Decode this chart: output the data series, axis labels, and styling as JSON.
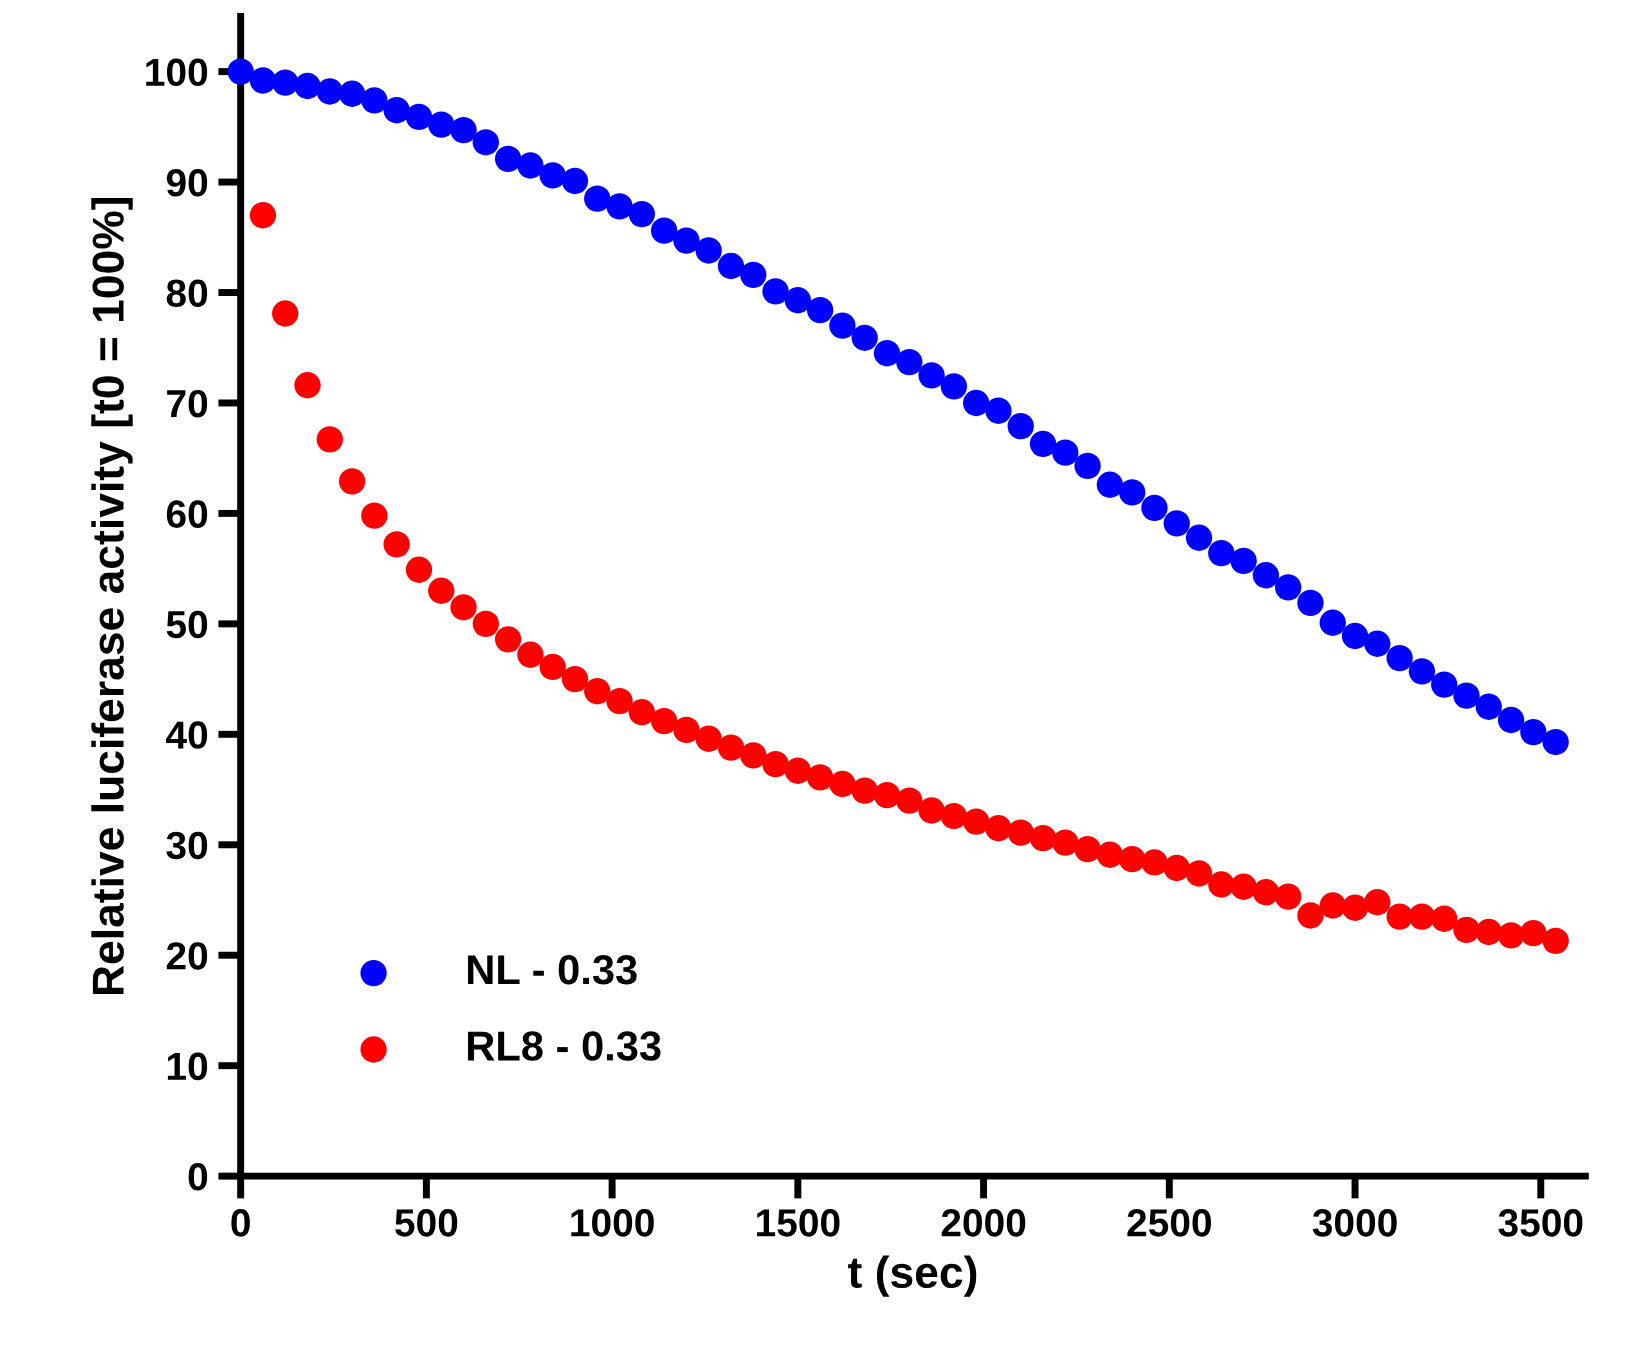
{
  "chart_data": {
    "type": "scatter",
    "xlabel": "t (sec)",
    "ylabel": "Relative luciferase activity [t0 = 100%]",
    "x": [
      0,
      60,
      120,
      180,
      240,
      300,
      360,
      420,
      480,
      540,
      600,
      660,
      720,
      780,
      840,
      900,
      960,
      1020,
      1080,
      1140,
      1200,
      1260,
      1320,
      1380,
      1440,
      1500,
      1560,
      1620,
      1680,
      1740,
      1800,
      1860,
      1920,
      1980,
      2040,
      2100,
      2160,
      2220,
      2280,
      2340,
      2400,
      2460,
      2520,
      2580,
      2640,
      2700,
      2760,
      2820,
      2880,
      2940,
      3000,
      3060,
      3120,
      3180,
      3240,
      3300,
      3360,
      3420,
      3480,
      3540
    ],
    "series": [
      {
        "name": "NL - 0.33",
        "color": "#0000ff",
        "values": [
          100,
          99.2,
          99.0,
          98.7,
          98.2,
          98.0,
          97.4,
          96.5,
          95.9,
          95.2,
          94.7,
          93.6,
          92.1,
          91.5,
          90.6,
          90.1,
          88.5,
          87.8,
          87.1,
          85.6,
          84.7,
          83.8,
          82.4,
          81.6,
          80.1,
          79.3,
          78.4,
          77.0,
          75.9,
          74.5,
          73.7,
          72.5,
          71.5,
          70.0,
          69.3,
          67.9,
          66.3,
          65.5,
          64.3,
          62.6,
          61.9,
          60.5,
          59.1,
          57.8,
          56.4,
          55.7,
          54.4,
          53.3,
          51.9,
          50.1,
          48.9,
          48.2,
          46.9,
          45.7,
          44.5,
          43.5,
          42.5,
          41.3,
          40.2,
          39.3
        ]
      },
      {
        "name": "RL8 - 0.33",
        "color": "#ff0000",
        "values": [
          null,
          87.0,
          78.1,
          71.6,
          66.7,
          62.9,
          59.8,
          57.2,
          54.9,
          53.0,
          51.5,
          50.0,
          48.6,
          47.2,
          46.1,
          45.0,
          43.9,
          43.0,
          42.0,
          41.2,
          40.4,
          39.6,
          38.8,
          38.1,
          37.3,
          36.7,
          36.1,
          35.5,
          34.9,
          34.5,
          34.0,
          33.1,
          32.6,
          32.1,
          31.5,
          31.1,
          30.6,
          30.2,
          29.6,
          29.1,
          28.7,
          28.4,
          27.9,
          27.4,
          26.4,
          26.2,
          25.7,
          25.3,
          23.6,
          24.5,
          24.3,
          24.8,
          23.5,
          23.5,
          23.3,
          22.3,
          22.1,
          21.8,
          22.0,
          21.3
        ]
      }
    ],
    "xlim": [
      0,
      3620
    ],
    "ylim": [
      0,
      105
    ],
    "xticks": [
      0,
      500,
      1000,
      1500,
      2000,
      2500,
      3000,
      3500
    ],
    "yticks": [
      0,
      10,
      20,
      30,
      40,
      50,
      60,
      70,
      80,
      90,
      100
    ],
    "grid": false,
    "legend": "bottom left",
    "marker": "circle"
  }
}
